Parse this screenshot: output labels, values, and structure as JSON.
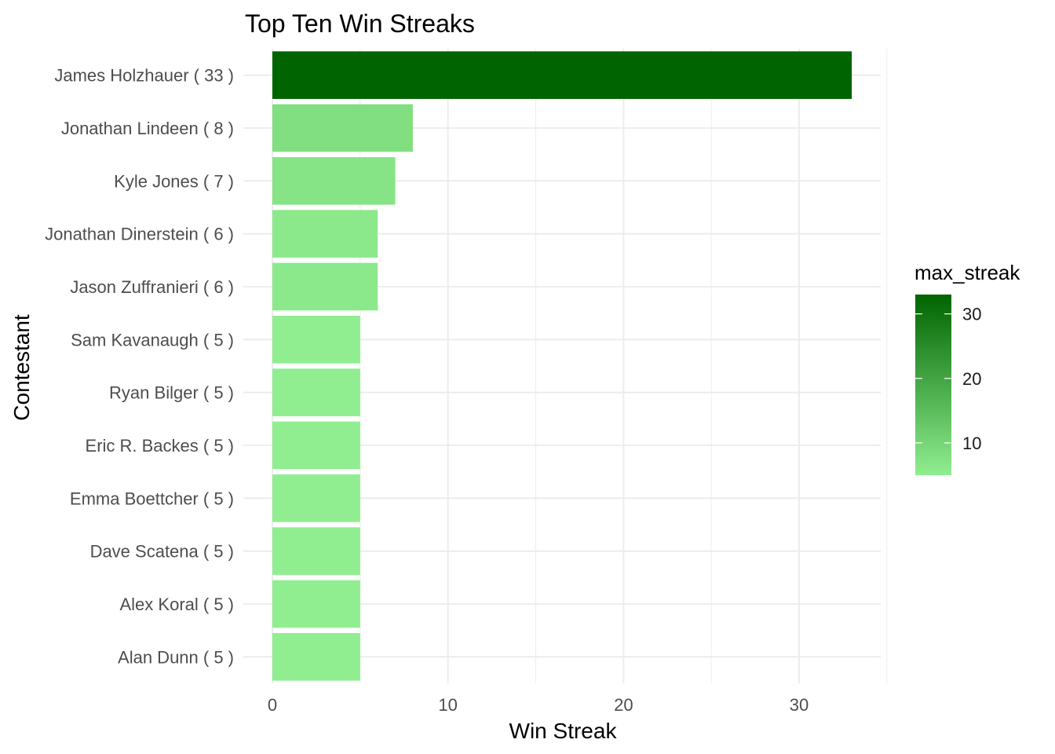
{
  "chart_data": {
    "type": "bar",
    "orientation": "horizontal",
    "title": "Top Ten Win Streaks",
    "xlabel": "Win Streak",
    "ylabel": "Contestant",
    "categories": [
      "James Holzhauer ( 33 )",
      "Jonathan Lindeen ( 8 )",
      "Kyle Jones ( 7 )",
      "Jonathan Dinerstein ( 6 )",
      "Jason Zuffranieri ( 6 )",
      "Sam Kavanaugh ( 5 )",
      "Ryan Bilger ( 5 )",
      "Eric R. Backes ( 5 )",
      "Emma Boettcher ( 5 )",
      "Dave Scatena ( 5 )",
      "Alex Koral ( 5 )",
      "Alan Dunn ( 5 )"
    ],
    "values": [
      33,
      8,
      7,
      6,
      6,
      5,
      5,
      5,
      5,
      5,
      5,
      5
    ],
    "xlim": [
      0,
      35
    ],
    "x_ticks": [
      0,
      10,
      20,
      30
    ],
    "grid": true,
    "colors": {
      "low": "#90ee90",
      "high": "#006400",
      "grid": "#ebebeb"
    },
    "legend": {
      "title": "max_streak",
      "placement": "right",
      "range": [
        5,
        33
      ],
      "ticks": [
        10,
        20,
        30
      ]
    }
  }
}
